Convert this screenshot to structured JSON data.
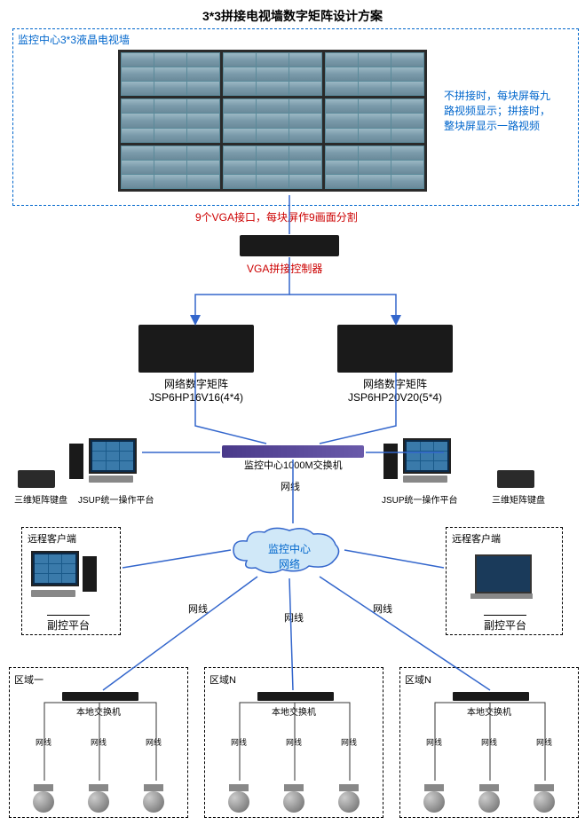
{
  "title": "3*3拼接电视墙数字矩阵设计方案",
  "wall_label": "监控中心3*3液晶电视墙",
  "wall_note": "不拼接时，每块屏每九路视频显示；拼接时，整块屏显示一路视频",
  "vga_note": "9个VGA接口，每块屏作9画面分割",
  "vga_ctrl": "VGA拼接控制器",
  "matrix_left": {
    "line1": "网络数字矩阵",
    "line2": "JSP6HP16V16(4*4)"
  },
  "matrix_right": {
    "line1": "网络数字矩阵",
    "line2": "JSP6HP20V20(5*4)"
  },
  "switch_label": "监控中心1000M交换机",
  "wire": "网线",
  "kb3d": "三维矩阵键盘",
  "jsup": "JSUP统一操作平台",
  "cloud": "监控中心网络",
  "remote_client": "远程客户端",
  "sub_platform": "副控平台",
  "region1": "区域一",
  "regionN": "区域N",
  "local_switch": "本地交换机",
  "colors": {
    "blue": "#0066cc",
    "red": "#cc0000",
    "line": "#3366cc",
    "dark": "#333333"
  }
}
